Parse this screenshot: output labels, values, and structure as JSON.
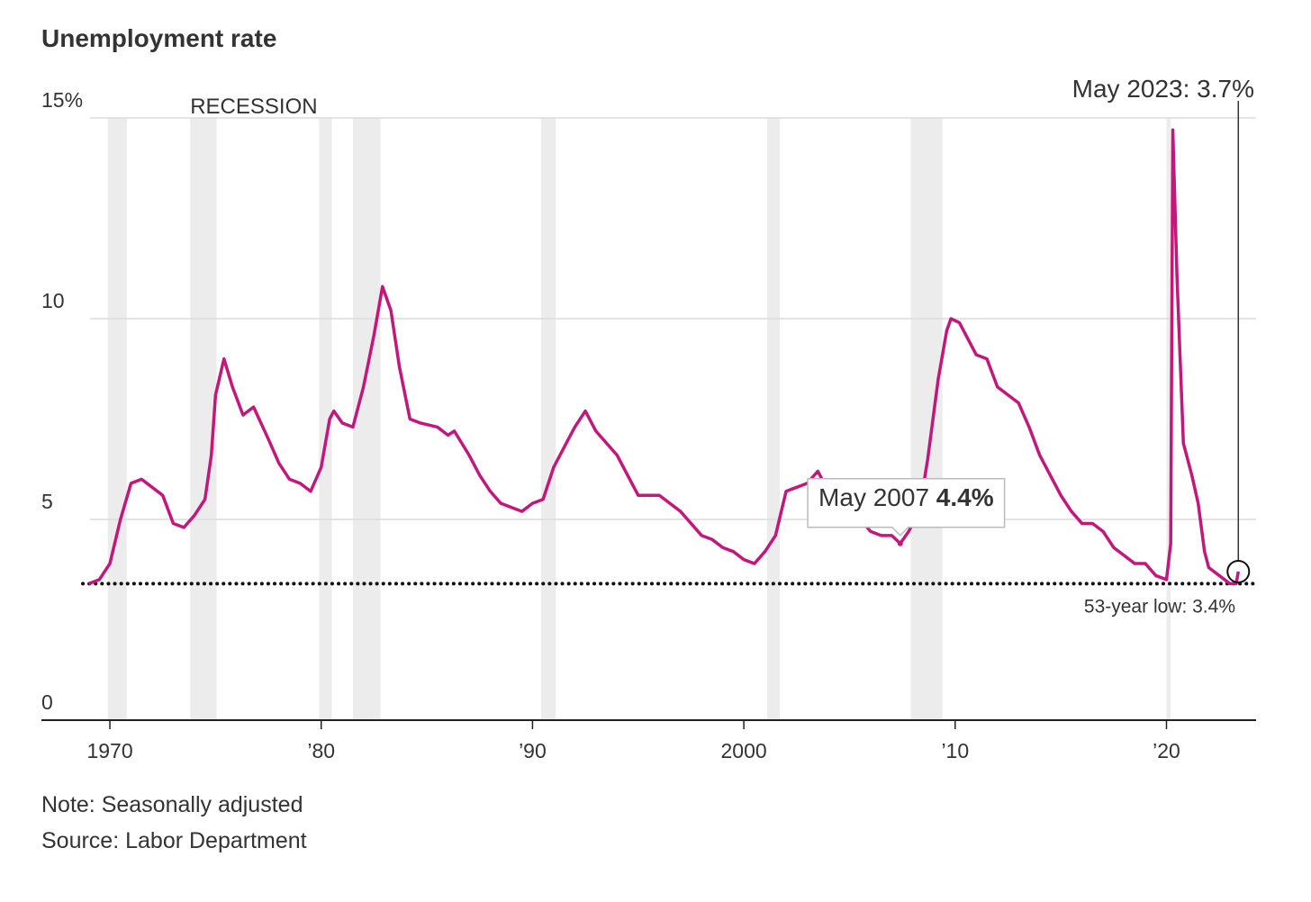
{
  "chart_data": {
    "type": "line",
    "title": "Unemployment rate",
    "color": "#c2187b",
    "xlim": [
      1966.76,
      2024.24
    ],
    "ylim": [
      0,
      15
    ],
    "yticks": [
      0,
      5,
      10,
      {
        "value": 15,
        "label": "15%"
      }
    ],
    "xticks": [
      {
        "value": 1970,
        "label": "1970"
      },
      {
        "value": 1980,
        "label": "’80"
      },
      {
        "value": 1990,
        "label": "’90"
      },
      {
        "value": 2000,
        "label": "2000"
      },
      {
        "value": 2010,
        "label": "’10"
      },
      {
        "value": 2020,
        "label": "’20"
      }
    ],
    "grid": true,
    "x": [
      1969.0,
      1969.5,
      1970.0,
      1970.5,
      1971.0,
      1971.5,
      1972.0,
      1972.5,
      1973.0,
      1973.5,
      1974.0,
      1974.5,
      1974.8,
      1975.0,
      1975.4,
      1975.8,
      1976.3,
      1976.8,
      1977.5,
      1978.0,
      1978.5,
      1979.0,
      1979.5,
      1980.0,
      1980.4,
      1980.6,
      1981.0,
      1981.5,
      1982.0,
      1982.5,
      1982.9,
      1983.3,
      1983.7,
      1984.2,
      1984.7,
      1985.5,
      1986.0,
      1986.3,
      1987.0,
      1987.5,
      1988.0,
      1988.5,
      1989.0,
      1989.5,
      1990.0,
      1990.5,
      1991.0,
      1991.5,
      1992.0,
      1992.5,
      1993.0,
      1993.5,
      1994.0,
      1994.5,
      1995.0,
      1995.5,
      1996.0,
      1996.5,
      1997.0,
      1997.5,
      1998.0,
      1998.5,
      1999.0,
      1999.5,
      2000.0,
      2000.5,
      2001.0,
      2001.5,
      2002.0,
      2002.5,
      2003.0,
      2003.5,
      2004.0,
      2004.5,
      2005.0,
      2005.5,
      2006.0,
      2006.5,
      2007.0,
      2007.4,
      2007.8,
      2008.3,
      2008.7,
      2009.2,
      2009.6,
      2009.8,
      2010.2,
      2010.6,
      2011.0,
      2011.5,
      2012.0,
      2012.5,
      2013.0,
      2013.5,
      2014.0,
      2014.5,
      2015.0,
      2015.5,
      2016.0,
      2016.5,
      2017.0,
      2017.5,
      2018.0,
      2018.5,
      2019.0,
      2019.5,
      2020.0,
      2020.2,
      2020.3,
      2020.5,
      2020.8,
      2021.2,
      2021.5,
      2021.8,
      2022.0,
      2022.5,
      2023.0,
      2023.3,
      2023.4
    ],
    "values": [
      3.4,
      3.5,
      3.9,
      5.0,
      5.9,
      6.0,
      5.8,
      5.6,
      4.9,
      4.8,
      5.1,
      5.5,
      6.6,
      8.1,
      9.0,
      8.3,
      7.6,
      7.8,
      7.0,
      6.4,
      6.0,
      5.9,
      5.7,
      6.3,
      7.5,
      7.7,
      7.4,
      7.3,
      8.3,
      9.6,
      10.8,
      10.2,
      8.8,
      7.5,
      7.4,
      7.3,
      7.1,
      7.2,
      6.6,
      6.1,
      5.7,
      5.4,
      5.3,
      5.2,
      5.4,
      5.5,
      6.3,
      6.8,
      7.3,
      7.7,
      7.2,
      6.9,
      6.6,
      6.1,
      5.6,
      5.6,
      5.6,
      5.4,
      5.2,
      4.9,
      4.6,
      4.5,
      4.3,
      4.2,
      4.0,
      3.9,
      4.2,
      4.6,
      5.7,
      5.8,
      5.9,
      6.2,
      5.7,
      5.5,
      5.3,
      5.0,
      4.7,
      4.6,
      4.6,
      4.4,
      4.7,
      5.2,
      6.5,
      8.5,
      9.7,
      10.0,
      9.9,
      9.5,
      9.1,
      9.0,
      8.3,
      8.1,
      7.9,
      7.3,
      6.6,
      6.1,
      5.6,
      5.2,
      4.9,
      4.9,
      4.7,
      4.3,
      4.1,
      3.9,
      3.9,
      3.6,
      3.5,
      4.4,
      14.7,
      11.0,
      6.9,
      6.1,
      5.4,
      4.2,
      3.8,
      3.6,
      3.4,
      3.4,
      3.7
    ],
    "recession_label": "RECESSION",
    "recessions": [
      [
        1969.9,
        1970.8
      ],
      [
        1973.8,
        1975.05
      ],
      [
        1979.9,
        1980.5
      ],
      [
        1981.5,
        1982.8
      ],
      [
        1990.4,
        1991.1
      ],
      [
        2001.1,
        2001.7
      ],
      [
        2007.9,
        2009.4
      ],
      [
        2020.0,
        2020.2
      ]
    ],
    "low": {
      "value": 3.4,
      "text": "53-year low: 3.4%"
    },
    "annotations": [
      {
        "x": 2007.4,
        "y": 4.4,
        "label": "May 2007",
        "value_label": "4.4%"
      },
      {
        "x": 2023.4,
        "y": 3.7,
        "text": "May 2023: 3.7%"
      }
    ],
    "note": "Note: Seasonally adjusted",
    "source": "Source: Labor Department"
  }
}
